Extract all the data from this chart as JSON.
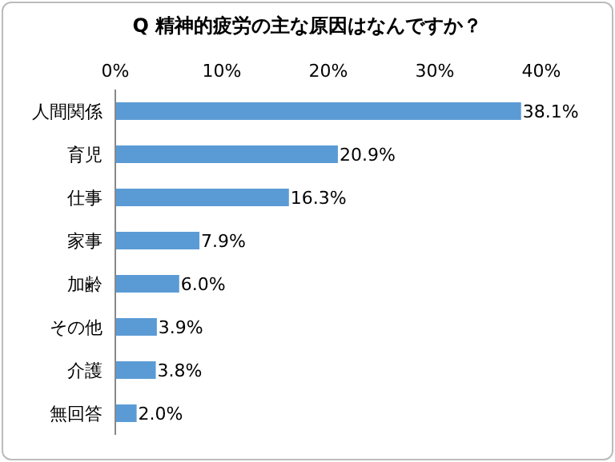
{
  "chart_data": {
    "type": "bar",
    "orientation": "horizontal",
    "title": "Q 精神的疲労の主な原因はなんですか？",
    "categories": [
      "人間関係",
      "育児",
      "仕事",
      "家事",
      "加齢",
      "その他",
      "介護",
      "無回答"
    ],
    "values": [
      38.1,
      20.9,
      16.3,
      7.9,
      6.0,
      3.9,
      3.8,
      2.0
    ],
    "value_labels": [
      "38.1%",
      "20.9%",
      "16.3%",
      "7.9%",
      "6.0%",
      "3.9%",
      "3.8%",
      "2.0%"
    ],
    "color": "#5b9bd5",
    "xlim": [
      0,
      40
    ],
    "xticks": [
      {
        "value": 0,
        "label": "0%"
      },
      {
        "value": 10,
        "label": "10%"
      },
      {
        "value": 20,
        "label": "20%"
      },
      {
        "value": 30,
        "label": "30%"
      },
      {
        "value": 40,
        "label": "40%"
      }
    ],
    "grid": false,
    "legend": false
  }
}
